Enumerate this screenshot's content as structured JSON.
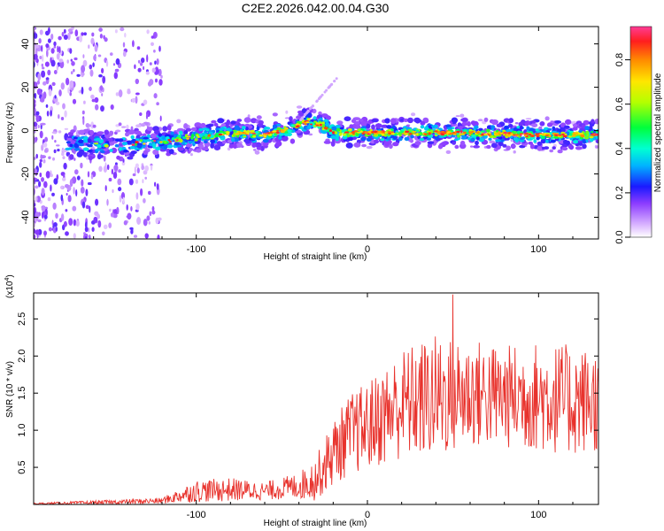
{
  "chart_data": [
    {
      "type": "heatmap",
      "title": "C2E2.2026.042.00.04.G30",
      "xlabel": "Height of straight line (km)",
      "ylabel": "Frequency (Hz)",
      "xlim": [
        -195,
        135
      ],
      "ylim": [
        -50,
        48
      ],
      "xticks": [
        -100,
        0,
        100
      ],
      "yticks": [
        -40,
        -20,
        0,
        20,
        40
      ],
      "colorbar": {
        "label": "Normalized spectral amplitude",
        "range": [
          0.0,
          0.95
        ],
        "ticks": [
          "0.0",
          "0.2",
          "0.4",
          "0.6",
          "0.8"
        ],
        "tick_values": [
          0.0,
          0.2,
          0.4,
          0.6,
          0.8
        ]
      },
      "ridge": {
        "description_points_x": [
          -195,
          -170,
          -150,
          -120,
          -100,
          -80,
          -60,
          -45,
          -35,
          -25,
          -20,
          0,
          50,
          100,
          135
        ],
        "description_points_freq": [
          -5,
          -6,
          -7,
          -5,
          -3,
          -1,
          -2,
          1,
          4,
          2,
          -1,
          -1,
          -1,
          -2,
          -2
        ]
      }
    },
    {
      "type": "line",
      "title": "",
      "xlabel": "Height of straight line (km)",
      "ylabel": "SNR (10 * v/v)",
      "y_multiplier_label": "(x10",
      "y_multiplier_exp": "4",
      "xlim": [
        -195,
        135
      ],
      "ylim": [
        0,
        2.85
      ],
      "xticks": [
        -100,
        0,
        100
      ],
      "yticks": [
        "0.5",
        "1.0",
        "1.5",
        "2.0",
        "2.5"
      ],
      "ytick_values": [
        0.5,
        1.0,
        1.5,
        2.0,
        2.5
      ],
      "color": "#e8322c",
      "envelope": {
        "x": [
          -195,
          -150,
          -120,
          -100,
          -80,
          -60,
          -40,
          -30,
          -20,
          -10,
          0,
          20,
          40,
          60,
          80,
          100,
          120,
          135
        ],
        "mean": [
          0.01,
          0.03,
          0.05,
          0.18,
          0.2,
          0.18,
          0.25,
          0.35,
          0.7,
          0.95,
          1.05,
          1.35,
          1.45,
          1.5,
          1.45,
          1.45,
          1.4,
          1.4
        ],
        "spread": [
          0.01,
          0.03,
          0.04,
          0.15,
          0.16,
          0.12,
          0.18,
          0.3,
          0.45,
          0.55,
          0.6,
          0.75,
          0.85,
          0.75,
          0.7,
          0.75,
          0.75,
          0.7
        ]
      },
      "peak": {
        "x": 50,
        "y": 2.83
      }
    }
  ]
}
